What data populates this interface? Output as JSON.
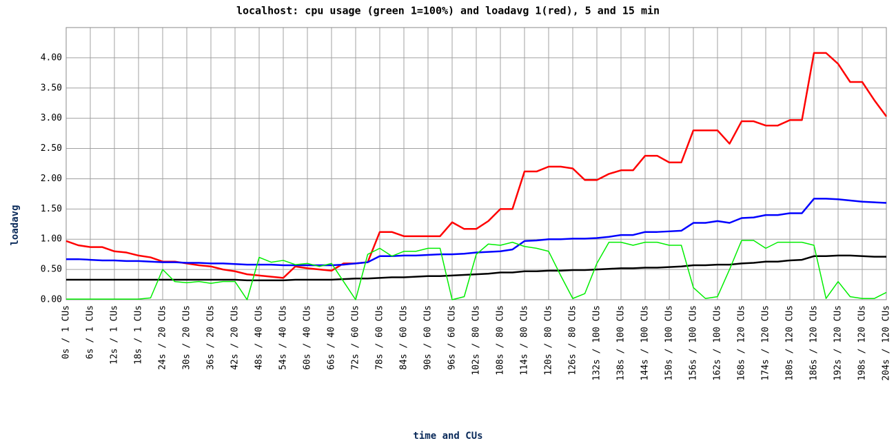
{
  "chart_data": {
    "type": "line",
    "title": "localhost: cpu usage (green 1=100%) and loadavg 1(red), 5 and 15 min",
    "x_label": "time and CUs",
    "y_label": "loadavg",
    "grid": true,
    "xlim": [
      0,
      204
    ],
    "ylim": [
      0,
      4.5
    ],
    "yticks": [
      {
        "value": 0,
        "label": "0.00"
      },
      {
        "value": 0.5,
        "label": "0.50"
      },
      {
        "value": 1,
        "label": "1.00"
      },
      {
        "value": 1.5,
        "label": "1.50"
      },
      {
        "value": 2,
        "label": "2.00"
      },
      {
        "value": 2.5,
        "label": "2.50"
      },
      {
        "value": 3,
        "label": "3.00"
      },
      {
        "value": 3.5,
        "label": "3.50"
      },
      {
        "value": 4,
        "label": "4.00"
      }
    ],
    "xticks": [
      {
        "value": 0,
        "label": "0s / 1 CUs"
      },
      {
        "value": 6,
        "label": "6s / 1 CUs"
      },
      {
        "value": 12,
        "label": "12s / 1 CUs"
      },
      {
        "value": 18,
        "label": "18s / 1 CUs"
      },
      {
        "value": 24,
        "label": "24s / 20 CUs"
      },
      {
        "value": 30,
        "label": "30s / 20 CUs"
      },
      {
        "value": 36,
        "label": "36s / 20 CUs"
      },
      {
        "value": 42,
        "label": "42s / 20 CUs"
      },
      {
        "value": 48,
        "label": "48s / 40 CUs"
      },
      {
        "value": 54,
        "label": "54s / 40 CUs"
      },
      {
        "value": 60,
        "label": "60s / 40 CUs"
      },
      {
        "value": 66,
        "label": "66s / 40 CUs"
      },
      {
        "value": 72,
        "label": "72s / 60 CUs"
      },
      {
        "value": 78,
        "label": "78s / 60 CUs"
      },
      {
        "value": 84,
        "label": "84s / 60 CUs"
      },
      {
        "value": 90,
        "label": "90s / 60 CUs"
      },
      {
        "value": 96,
        "label": "96s / 60 CUs"
      },
      {
        "value": 102,
        "label": "102s / 80 CUs"
      },
      {
        "value": 108,
        "label": "108s / 80 CUs"
      },
      {
        "value": 114,
        "label": "114s / 80 CUs"
      },
      {
        "value": 120,
        "label": "120s / 80 CUs"
      },
      {
        "value": 126,
        "label": "126s / 80 CUs"
      },
      {
        "value": 132,
        "label": "132s / 100 CUs"
      },
      {
        "value": 138,
        "label": "138s / 100 CUs"
      },
      {
        "value": 144,
        "label": "144s / 100 CUs"
      },
      {
        "value": 150,
        "label": "150s / 100 CUs"
      },
      {
        "value": 156,
        "label": "156s / 100 CUs"
      },
      {
        "value": 162,
        "label": "162s / 100 CUs"
      },
      {
        "value": 168,
        "label": "168s / 120 CUs"
      },
      {
        "value": 174,
        "label": "174s / 120 CUs"
      },
      {
        "value": 180,
        "label": "180s / 120 CUs"
      },
      {
        "value": 186,
        "label": "186s / 120 CUs"
      },
      {
        "value": 192,
        "label": "192s / 120 CUs"
      },
      {
        "value": 198,
        "label": "198s / 120 CUs"
      },
      {
        "value": 204,
        "label": "204s / 120 CUs"
      }
    ],
    "x": [
      0,
      3,
      6,
      9,
      12,
      15,
      18,
      21,
      24,
      27,
      30,
      33,
      36,
      39,
      42,
      45,
      48,
      51,
      54,
      57,
      60,
      63,
      66,
      69,
      72,
      75,
      78,
      81,
      84,
      87,
      90,
      93,
      96,
      99,
      102,
      105,
      108,
      111,
      114,
      117,
      120,
      123,
      126,
      129,
      132,
      135,
      138,
      141,
      144,
      147,
      150,
      153,
      156,
      159,
      162,
      165,
      168,
      171,
      174,
      177,
      180,
      183,
      186,
      189,
      192,
      195,
      198,
      201,
      204
    ],
    "series": [
      {
        "color": "#ff0000",
        "width": 2.5,
        "values": [
          0.97,
          0.9,
          0.87,
          0.87,
          0.8,
          0.78,
          0.73,
          0.7,
          0.63,
          0.63,
          0.6,
          0.57,
          0.55,
          0.5,
          0.47,
          0.42,
          0.4,
          0.38,
          0.36,
          0.55,
          0.52,
          0.5,
          0.48,
          0.6,
          0.6,
          0.62,
          1.12,
          1.12,
          1.05,
          1.05,
          1.05,
          1.05,
          1.28,
          1.17,
          1.17,
          1.3,
          1.5,
          1.5,
          2.12,
          2.12,
          2.2,
          2.2,
          2.17,
          1.98,
          1.98,
          2.08,
          2.14,
          2.14,
          2.38,
          2.38,
          2.27,
          2.27,
          2.8,
          2.8,
          2.8,
          2.58,
          2.95,
          2.95,
          2.88,
          2.88,
          2.97,
          2.97,
          4.08,
          4.08,
          3.9,
          3.6,
          3.6,
          3.3,
          3.03
        ]
      },
      {
        "color": "#0000ff",
        "width": 2.5,
        "values": [
          0.67,
          0.67,
          0.66,
          0.65,
          0.65,
          0.64,
          0.64,
          0.63,
          0.62,
          0.62,
          0.61,
          0.61,
          0.6,
          0.6,
          0.59,
          0.58,
          0.58,
          0.58,
          0.57,
          0.57,
          0.57,
          0.57,
          0.57,
          0.58,
          0.6,
          0.62,
          0.72,
          0.72,
          0.73,
          0.73,
          0.74,
          0.75,
          0.75,
          0.76,
          0.78,
          0.79,
          0.8,
          0.83,
          0.97,
          0.98,
          1.0,
          1.0,
          1.01,
          1.01,
          1.02,
          1.04,
          1.07,
          1.07,
          1.12,
          1.12,
          1.13,
          1.14,
          1.27,
          1.27,
          1.3,
          1.27,
          1.35,
          1.36,
          1.4,
          1.4,
          1.43,
          1.43,
          1.67,
          1.67,
          1.66,
          1.64,
          1.62,
          1.61,
          1.6
        ]
      },
      {
        "color": "#000000",
        "width": 2.5,
        "values": [
          0.33,
          0.33,
          0.33,
          0.33,
          0.33,
          0.33,
          0.33,
          0.33,
          0.33,
          0.33,
          0.33,
          0.33,
          0.33,
          0.33,
          0.33,
          0.32,
          0.32,
          0.32,
          0.32,
          0.33,
          0.33,
          0.33,
          0.33,
          0.34,
          0.35,
          0.35,
          0.36,
          0.37,
          0.37,
          0.38,
          0.39,
          0.39,
          0.4,
          0.41,
          0.42,
          0.43,
          0.45,
          0.45,
          0.47,
          0.47,
          0.48,
          0.48,
          0.49,
          0.49,
          0.5,
          0.51,
          0.52,
          0.52,
          0.53,
          0.53,
          0.54,
          0.55,
          0.57,
          0.57,
          0.58,
          0.58,
          0.6,
          0.61,
          0.63,
          0.63,
          0.65,
          0.66,
          0.72,
          0.72,
          0.73,
          0.73,
          0.72,
          0.71,
          0.71
        ]
      },
      {
        "color": "#00ee00",
        "width": 1.5,
        "values": [
          0.01,
          0.01,
          0.01,
          0.01,
          0.01,
          0.01,
          0.01,
          0.03,
          0.5,
          0.3,
          0.28,
          0.3,
          0.27,
          0.3,
          0.3,
          0.0,
          0.7,
          0.62,
          0.65,
          0.58,
          0.6,
          0.55,
          0.6,
          0.3,
          0.0,
          0.75,
          0.85,
          0.72,
          0.8,
          0.8,
          0.85,
          0.85,
          0.0,
          0.05,
          0.75,
          0.92,
          0.9,
          0.95,
          0.88,
          0.85,
          0.8,
          0.4,
          0.02,
          0.1,
          0.6,
          0.95,
          0.95,
          0.9,
          0.95,
          0.95,
          0.9,
          0.9,
          0.2,
          0.02,
          0.05,
          0.5,
          0.98,
          0.98,
          0.85,
          0.95,
          0.95,
          0.95,
          0.9,
          0.02,
          0.3,
          0.05,
          0.02,
          0.02,
          0.12
        ]
      }
    ]
  }
}
